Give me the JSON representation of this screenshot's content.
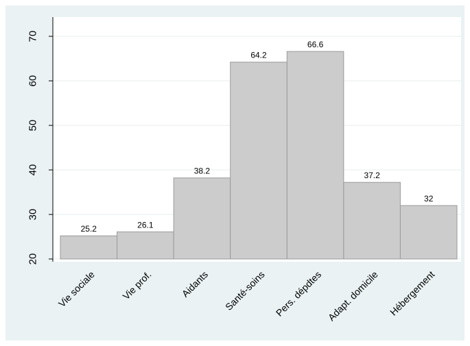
{
  "chart_data": {
    "type": "bar",
    "categories": [
      "Vie sociale",
      "Vie prof.",
      "Aidants",
      "Santé-soins",
      "Pers. dépdtes",
      "Adapt. domicile",
      "Hébergement"
    ],
    "values": [
      25.2,
      26.1,
      38.2,
      64.2,
      66.6,
      37.2,
      32
    ],
    "data_labels": [
      "25.2",
      "26.1",
      "38.2",
      "64.2",
      "66.6",
      "37.2",
      "32"
    ],
    "yticks": [
      "20",
      "30",
      "40",
      "50",
      "60",
      "70"
    ],
    "ylim": [
      20,
      72
    ],
    "xlabel": "",
    "ylabel": "",
    "title": "",
    "grid": true,
    "legend": "none",
    "colors": {
      "background": "#eaf2f3",
      "plot_area": "#ffffff",
      "bar_fill": "#cccccc",
      "bar_stroke": "#9a9a9a",
      "grid": "#e8eeee",
      "axis": "#000000"
    }
  }
}
